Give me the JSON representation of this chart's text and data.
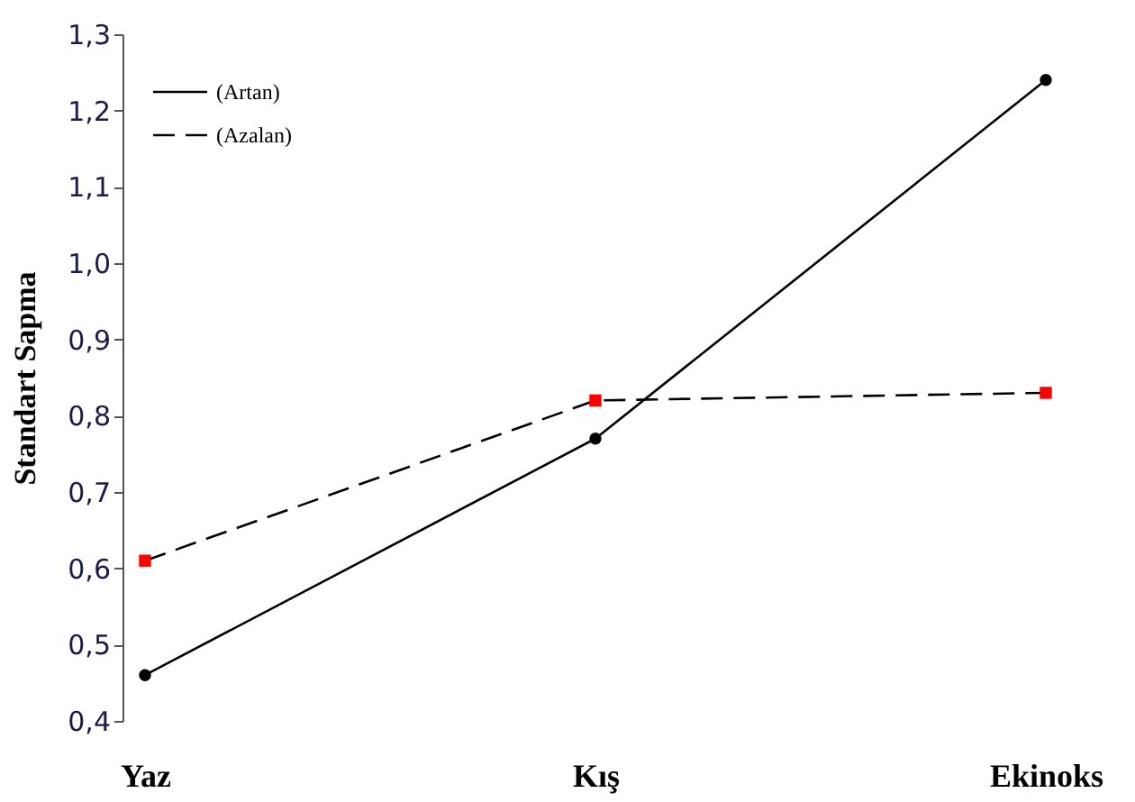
{
  "chart_data": {
    "type": "line",
    "ylabel": "Standart Sapma",
    "categories": [
      "Yaz",
      "Kış",
      "Ekinoks"
    ],
    "series": [
      {
        "name": "(Artan)",
        "color": "#000000",
        "values": [
          0.46,
          0.77,
          1.24
        ],
        "line_style": "solid",
        "marker": "circle"
      },
      {
        "name": "(Azalan)",
        "color": "#000000",
        "colors": [
          "#ff0000",
          "#ff0000",
          "#ff0000"
        ],
        "values": [
          0.61,
          0.82,
          0.83
        ],
        "line_style": "dashed",
        "marker": "square"
      }
    ],
    "ylim": [
      0.4,
      1.3
    ],
    "yticks": [
      {
        "value": 0.4,
        "label": "0,4"
      },
      {
        "value": 0.5,
        "label": "0,5"
      },
      {
        "value": 0.6,
        "label": "0,6"
      },
      {
        "value": 0.7,
        "label": "0,7"
      },
      {
        "value": 0.8,
        "label": "0,8"
      },
      {
        "value": 0.9,
        "label": "0,9"
      },
      {
        "value": 1.0,
        "label": "1,0"
      },
      {
        "value": 1.1,
        "label": "1,1"
      },
      {
        "value": 1.2,
        "label": "1,2"
      },
      {
        "value": 1.3,
        "label": "1,3"
      }
    ],
    "legend": "top left",
    "grid": false
  }
}
